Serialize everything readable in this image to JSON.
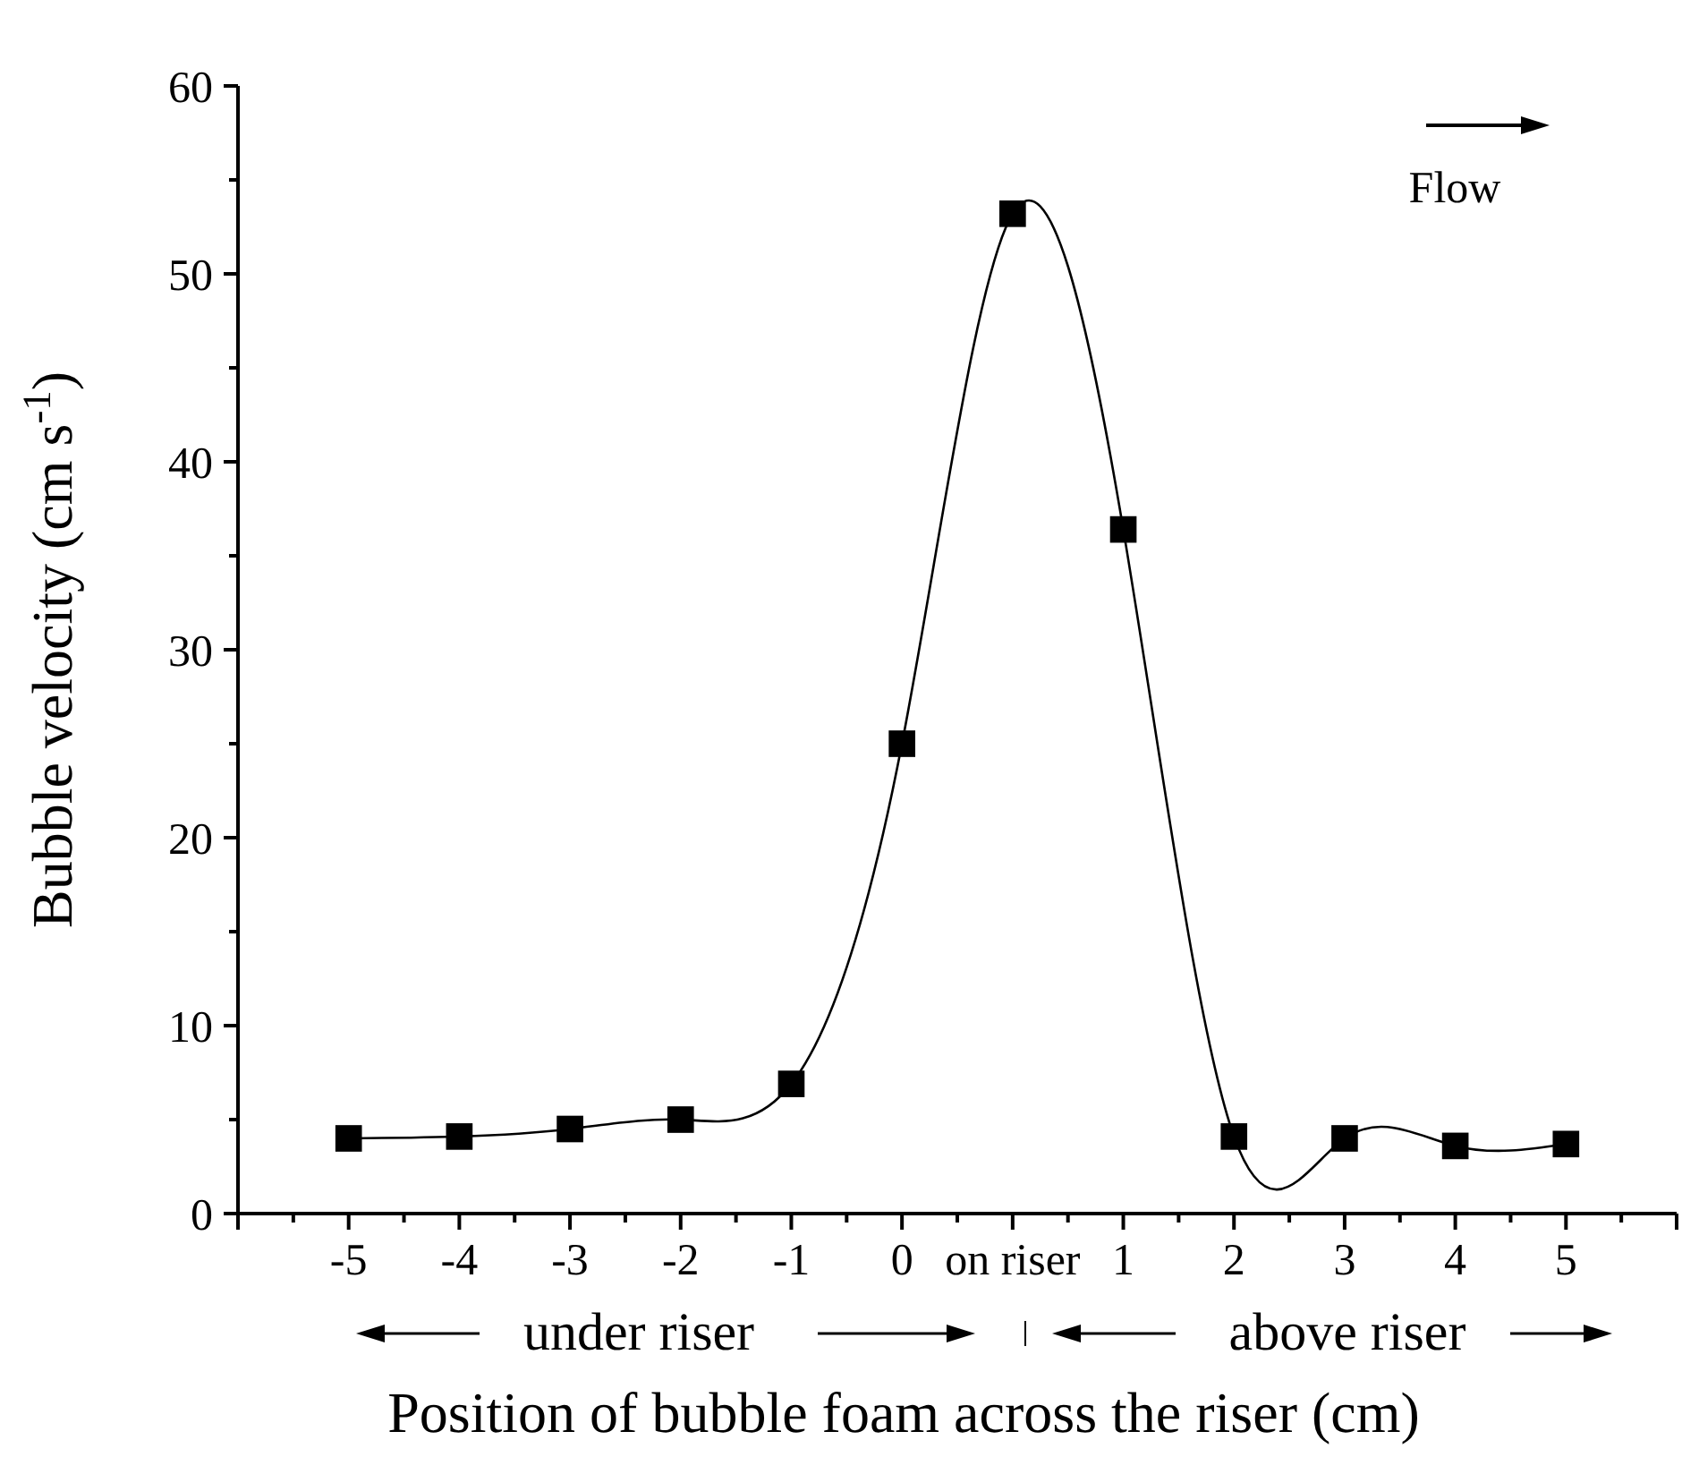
{
  "chart_data": {
    "type": "line",
    "xlabel": "Position of bubble foam across the riser (cm)",
    "ylabel": "Bubble velocity (cm s$^{-1}$)",
    "categories": [
      "-5",
      "-4",
      "-3",
      "-2",
      "-1",
      "0",
      "on riser",
      "1",
      "2",
      "3",
      "4",
      "5"
    ],
    "series": [
      {
        "color": "#000000",
        "values": [
          4.0,
          4.1,
          4.5,
          5.0,
          6.9,
          25.0,
          53.2,
          36.4,
          4.1,
          4.0,
          3.6,
          3.7
        ]
      }
    ],
    "ylim": [
      0,
      60
    ],
    "yticks": [
      0,
      10,
      20,
      30,
      40,
      50,
      60
    ],
    "marker": "square",
    "line_style": "solid",
    "grid": false,
    "annotations": [
      "Flow",
      "under riser",
      "above riser"
    ]
  }
}
